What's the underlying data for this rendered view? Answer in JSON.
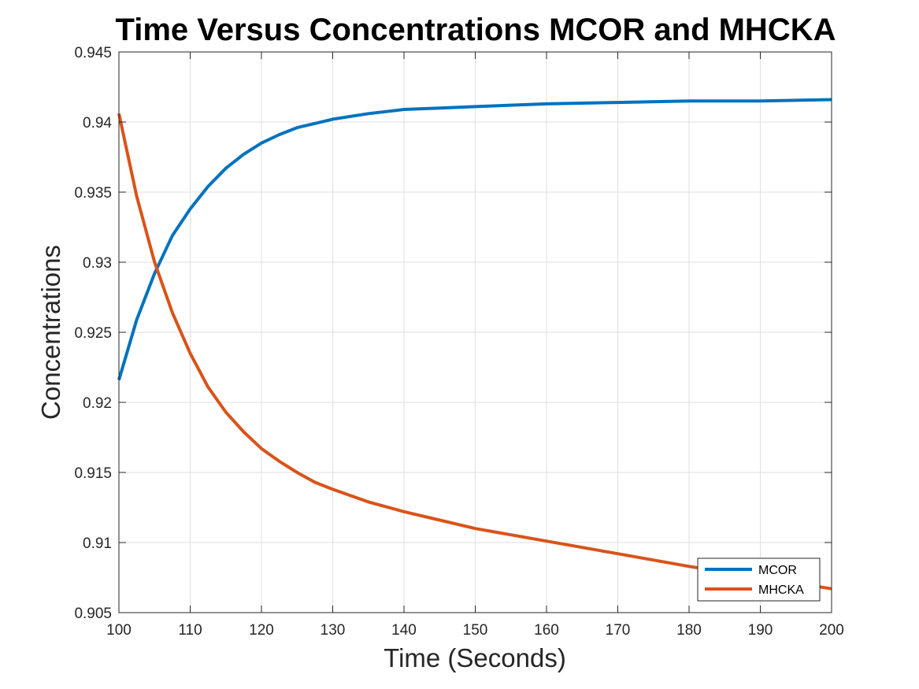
{
  "chart_data": {
    "type": "line",
    "title": "Time Versus Concentrations MCOR and MHCKA",
    "xlabel": "Time (Seconds)",
    "ylabel": "Concentrations",
    "xlim": [
      100,
      200
    ],
    "ylim": [
      0.905,
      0.945
    ],
    "xticks": [
      100,
      110,
      120,
      130,
      140,
      150,
      160,
      170,
      180,
      190,
      200
    ],
    "yticks": [
      0.905,
      0.91,
      0.915,
      0.92,
      0.925,
      0.93,
      0.935,
      0.94,
      0.945
    ],
    "xtick_labels": [
      "100",
      "110",
      "120",
      "130",
      "140",
      "150",
      "160",
      "170",
      "180",
      "190",
      "200"
    ],
    "ytick_labels": [
      "0.905",
      "0.91",
      "0.915",
      "0.92",
      "0.925",
      "0.93",
      "0.935",
      "0.94",
      "0.945"
    ],
    "grid": true,
    "legend_position": "bottom-right",
    "x": [
      100,
      102.5,
      105,
      107.5,
      110,
      112.5,
      115,
      117.5,
      120,
      122.5,
      125,
      127.5,
      130,
      135,
      140,
      145,
      150,
      160,
      170,
      180,
      190,
      200
    ],
    "series": [
      {
        "name": "MCOR",
        "color": "#0072BD",
        "values": [
          0.9216,
          0.9259,
          0.9292,
          0.9319,
          0.9338,
          0.9354,
          0.9367,
          0.9377,
          0.9385,
          0.9391,
          0.9396,
          0.9399,
          0.9402,
          0.9406,
          0.9409,
          0.941,
          0.9411,
          0.9413,
          0.9414,
          0.9415,
          0.9415,
          0.9416
        ]
      },
      {
        "name": "MHCKA",
        "color": "#D95319",
        "values": [
          0.9406,
          0.9347,
          0.93,
          0.9264,
          0.9235,
          0.9211,
          0.9193,
          0.9179,
          0.9167,
          0.9158,
          0.915,
          0.9143,
          0.9138,
          0.9129,
          0.9122,
          0.9116,
          0.911,
          0.9101,
          0.9092,
          0.9083,
          0.9075,
          0.9067
        ]
      }
    ]
  }
}
